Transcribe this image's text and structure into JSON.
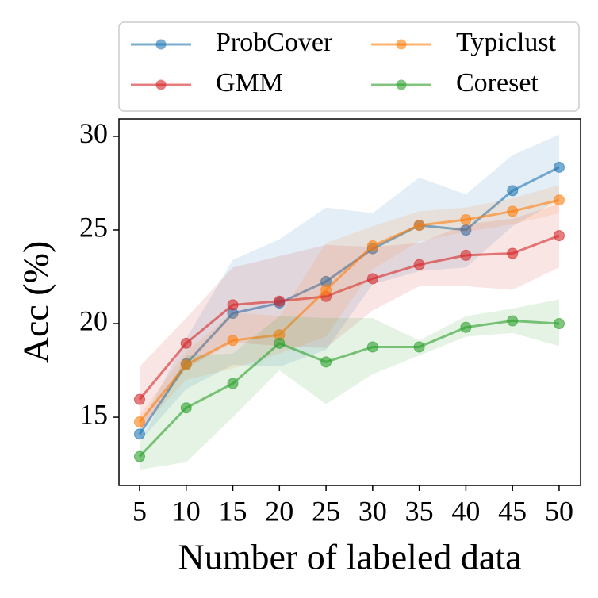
{
  "chart_data": {
    "type": "line",
    "xlabel": "Number of labeled data",
    "ylabel": "Acc (%)",
    "x": [
      5,
      10,
      15,
      20,
      25,
      30,
      35,
      40,
      45,
      50
    ],
    "xlim": [
      2.79,
      52.3
    ],
    "xticks": [
      5,
      10,
      15,
      20,
      25,
      30,
      35,
      40,
      45,
      50
    ],
    "ylim": [
      11.36,
      30.93
    ],
    "yticks": [
      15,
      20,
      25,
      30
    ],
    "legend": "top-outside",
    "series": [
      {
        "name": "ProbCover",
        "color": "#1f77b4",
        "values": [
          14.1,
          17.85,
          20.55,
          21.1,
          22.25,
          24.0,
          25.25,
          25.0,
          27.1,
          28.35
        ],
        "lower": [
          13.7,
          16.5,
          17.8,
          17.7,
          18.6,
          22.1,
          22.8,
          23.0,
          25.2,
          26.6
        ],
        "upper": [
          14.5,
          19.2,
          23.4,
          24.5,
          26.2,
          25.9,
          27.8,
          26.9,
          29.0,
          30.1
        ]
      },
      {
        "name": "GMM",
        "color": "#d62728",
        "values": [
          15.95,
          18.95,
          21.0,
          21.2,
          21.45,
          22.4,
          23.15,
          23.65,
          23.75,
          24.7
        ],
        "lower": [
          14.3,
          17.6,
          19.0,
          18.8,
          18.7,
          20.7,
          22.0,
          22.0,
          21.8,
          23.0
        ],
        "upper": [
          17.7,
          20.3,
          23.0,
          23.6,
          24.2,
          24.1,
          24.3,
          25.3,
          25.6,
          26.4
        ]
      },
      {
        "name": "Typiclust",
        "color": "#ff7f0e",
        "values": [
          14.75,
          17.8,
          19.1,
          19.4,
          21.8,
          24.15,
          25.25,
          25.55,
          26.0,
          26.6
        ],
        "lower": [
          14.3,
          17.0,
          17.6,
          18.4,
          19.3,
          22.9,
          24.4,
          24.9,
          25.3,
          25.9
        ],
        "upper": [
          15.1,
          18.5,
          20.6,
          20.4,
          24.3,
          25.2,
          26.0,
          26.2,
          26.7,
          27.4
        ]
      },
      {
        "name": "Coreset",
        "color": "#2ca02c",
        "values": [
          12.9,
          15.5,
          16.8,
          18.95,
          17.95,
          18.75,
          18.75,
          19.8,
          20.15,
          20.0
        ],
        "lower": [
          12.2,
          12.6,
          15.0,
          17.5,
          15.7,
          17.3,
          18.3,
          19.3,
          19.5,
          18.8
        ],
        "upper": [
          13.6,
          18.3,
          18.4,
          20.4,
          20.3,
          20.3,
          19.1,
          20.4,
          20.8,
          21.3
        ]
      }
    ]
  }
}
